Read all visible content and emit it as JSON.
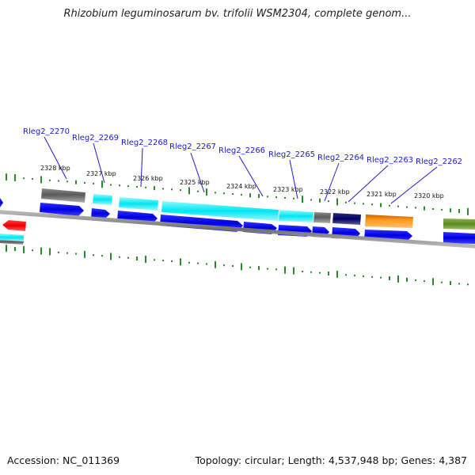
{
  "title": "Rhizobium leguminosarum bv. trifolii WSM2304, complete genom...",
  "footer": {
    "accession": "Accession: NC_011369",
    "summary": "Topology: circular; Length: 4,537,948 bp; Genes: 4,387"
  },
  "colors": {
    "backbone": "#808080",
    "cds_forward": "#0000ee",
    "gc_skew_ticks": "#2a8a2a",
    "gene_label": "#1a1acc"
  },
  "gene_labels": [
    "Rleg2_2270",
    "Rleg2_2269",
    "Rleg2_2268",
    "Rleg2_2267",
    "Rleg2_2266",
    "Rleg2_2265",
    "Rleg2_2264",
    "Rleg2_2263",
    "Rleg2_2262"
  ],
  "position_labels": [
    "2328 kbp",
    "2327 kbp",
    "2326 kbp",
    "2325 kbp",
    "2324 kbp",
    "2323 kbp",
    "2322 kbp",
    "2321 kbp",
    "2320 kbp"
  ]
}
